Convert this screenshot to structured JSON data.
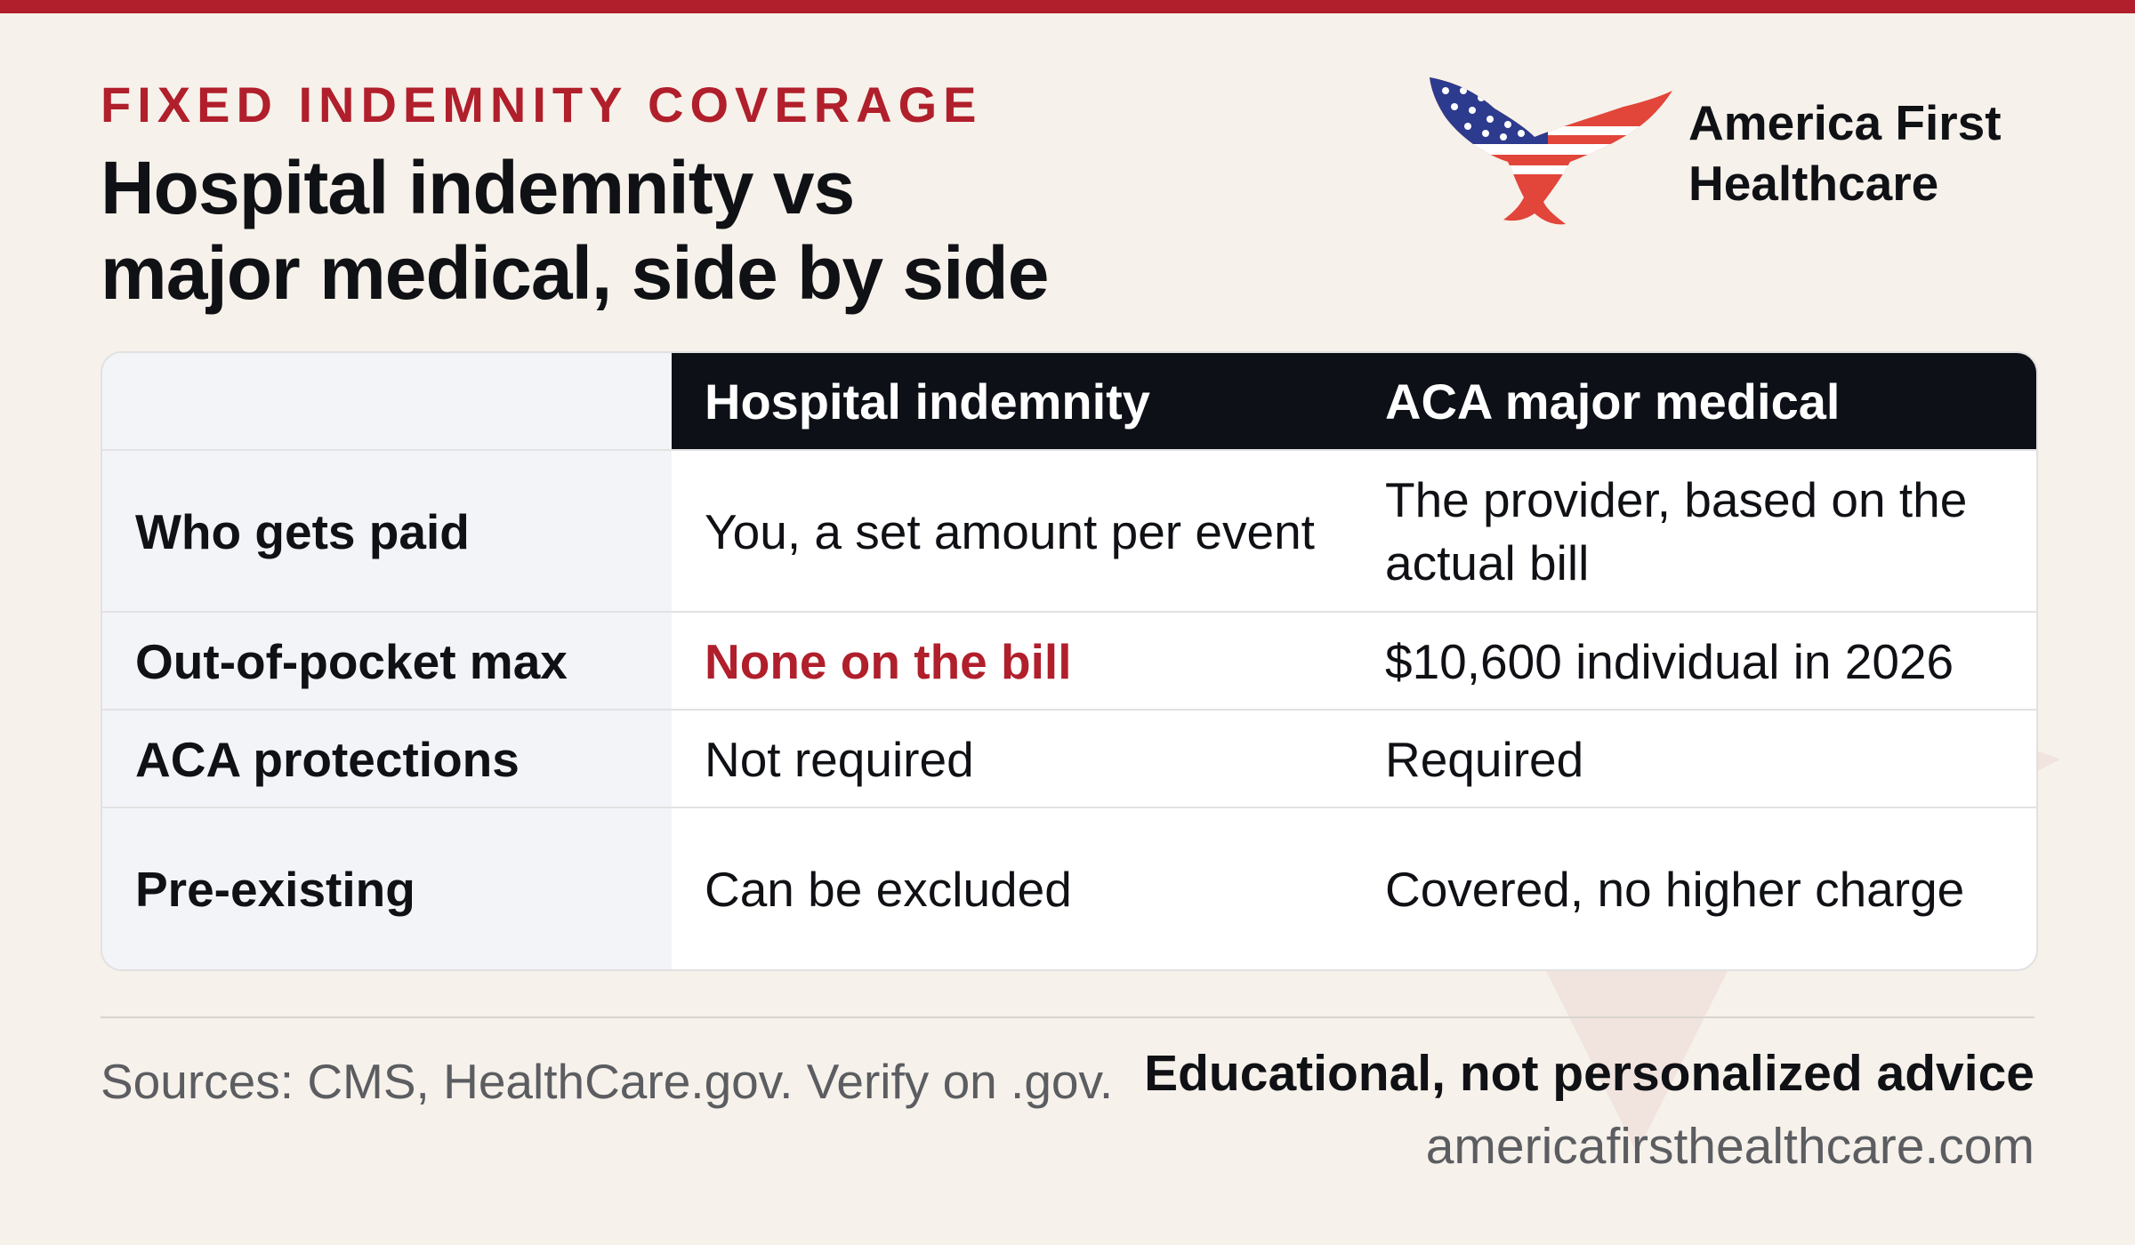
{
  "header": {
    "kicker": "FIXED INDEMNITY COVERAGE",
    "title_line1": "Hospital indemnity vs",
    "title_line2": "major medical, side by side"
  },
  "brand": {
    "name_line1": "America First",
    "name_line2": "Healthcare",
    "logo_icon": "eagle-flag-icon"
  },
  "table": {
    "columns": [
      "",
      "Hospital indemnity",
      "ACA major medical"
    ],
    "rows": [
      {
        "label": "Who gets paid",
        "indemnity": "You, a set amount per event",
        "aca": "The provider, based on the actual bill"
      },
      {
        "label": "Out-of-pocket max",
        "indemnity": "None on the bill",
        "aca": "$10,600 individual in 2026"
      },
      {
        "label": "ACA protections",
        "indemnity": "Not required",
        "aca": "Required"
      },
      {
        "label": "Pre-existing",
        "indemnity": "Can be excluded",
        "aca": "Covered, no higher charge"
      }
    ]
  },
  "footer": {
    "sources": "Sources: CMS, HealthCare.gov. Verify on .gov.",
    "disclaimer": "Educational, not personalized advice",
    "website": "americafirsthealthcare.com"
  },
  "colors": {
    "accent": "#b01f2b",
    "header_bg": "#0d1017",
    "page_bg": "#f6f1ea",
    "label_bg": "#f3f4f7"
  }
}
